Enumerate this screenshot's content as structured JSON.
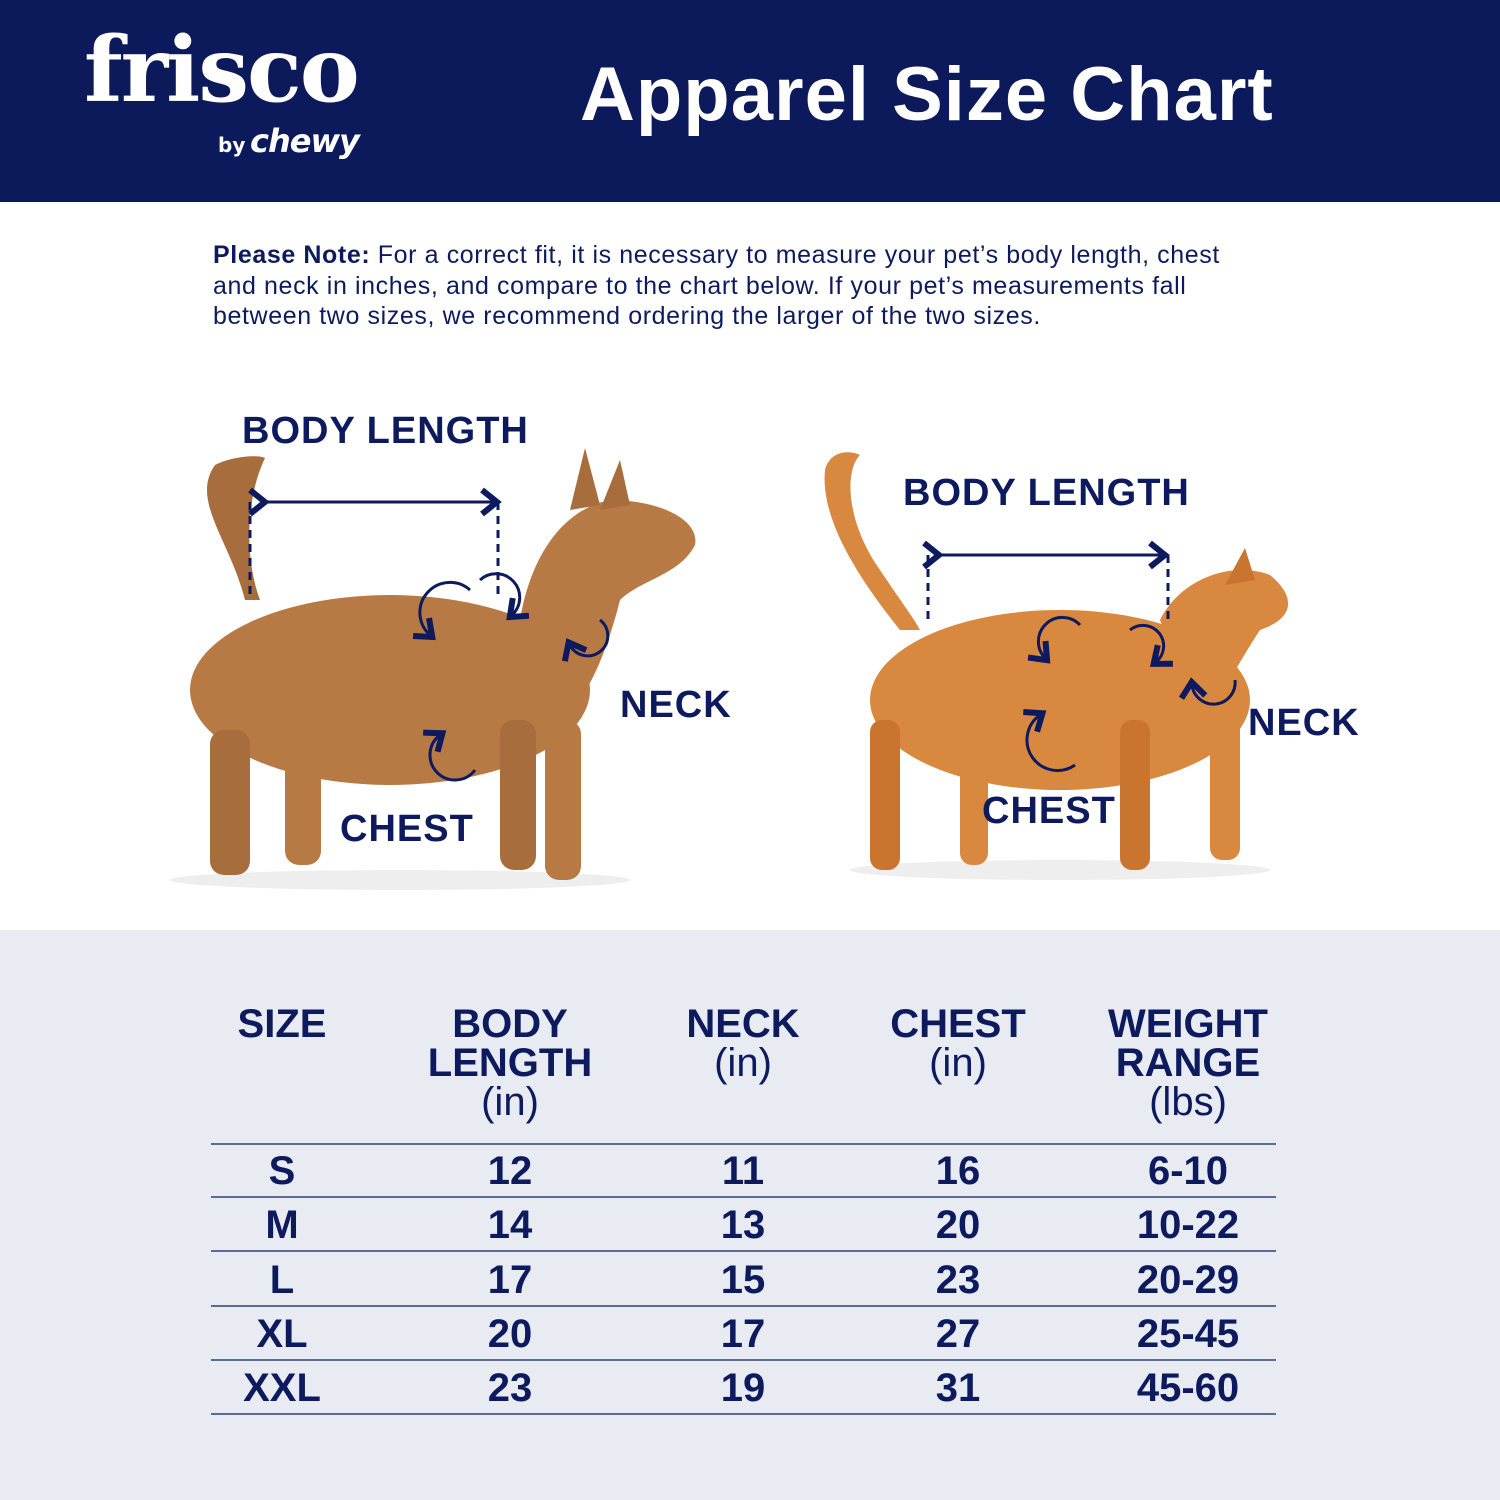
{
  "header": {
    "logo": {
      "brand": "frisco",
      "by": "by",
      "parent": "chewy"
    },
    "title": "Apparel Size Chart"
  },
  "note": {
    "label": "Please Note:",
    "text": " For a correct fit, it is necessary to measure your pet’s body length, chest and neck in inches, and compare to the chart below. If your pet’s measurements fall between two sizes, we recommend ordering the larger of the two sizes."
  },
  "dog": {
    "body_length": "BODY LENGTH",
    "neck": "NECK",
    "chest": "CHEST"
  },
  "cat": {
    "body_length": "BODY LENGTH",
    "neck": "NECK",
    "chest": "CHEST"
  },
  "colors": {
    "navy": "#0c1a5c",
    "table_bg": "#e8ebf1",
    "dog_fur": "#b87a45",
    "cat_fur": "#d9883f"
  },
  "table": {
    "columns": [
      {
        "title": "SIZE",
        "unit": ""
      },
      {
        "title": "BODY LENGTH",
        "unit": "(in)"
      },
      {
        "title": "NECK",
        "unit": "(in)"
      },
      {
        "title": "CHEST",
        "unit": "(in)"
      },
      {
        "title": "WEIGHT RANGE",
        "unit": "(lbs)"
      }
    ],
    "rows": [
      [
        "S",
        "12",
        "11",
        "16",
        "6-10"
      ],
      [
        "M",
        "14",
        "13",
        "20",
        "10-22"
      ],
      [
        "L",
        "17",
        "15",
        "23",
        "20-29"
      ],
      [
        "XL",
        "20",
        "17",
        "27",
        "25-45"
      ],
      [
        "XXL",
        "23",
        "19",
        "31",
        "45-60"
      ]
    ]
  }
}
